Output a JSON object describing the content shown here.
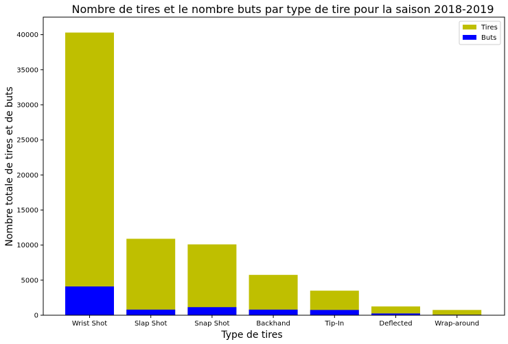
{
  "chart_data": {
    "type": "bar",
    "stacking": "overlay",
    "title": "Nombre de tires et le nombre buts par type de tire pour la saison 2018-2019",
    "xlabel": "Type de tires",
    "ylabel": "Nombre totale de tires et de buts",
    "categories": [
      "Wrist Shot",
      "Slap Shot",
      "Snap Shot",
      "Backhand",
      "Tip-In",
      "Deflected",
      "Wrap-around"
    ],
    "series": [
      {
        "name": "Tires",
        "color": "#bfbf00",
        "values": [
          40300,
          10900,
          10100,
          5750,
          3500,
          1250,
          750
        ]
      },
      {
        "name": "Buts",
        "color": "#0000ff",
        "values": [
          4100,
          800,
          1150,
          800,
          750,
          250,
          70
        ]
      }
    ],
    "ylim": [
      0,
      42500
    ],
    "yticks": [
      0,
      5000,
      10000,
      15000,
      20000,
      25000,
      30000,
      35000,
      40000
    ],
    "ytick_labels": [
      "0",
      "5000",
      "10000",
      "15000",
      "20000",
      "25000",
      "30000",
      "35000",
      "40000"
    ],
    "grid": false,
    "legend": {
      "position": "top-right",
      "entries": [
        "Tires",
        "Buts"
      ]
    }
  }
}
